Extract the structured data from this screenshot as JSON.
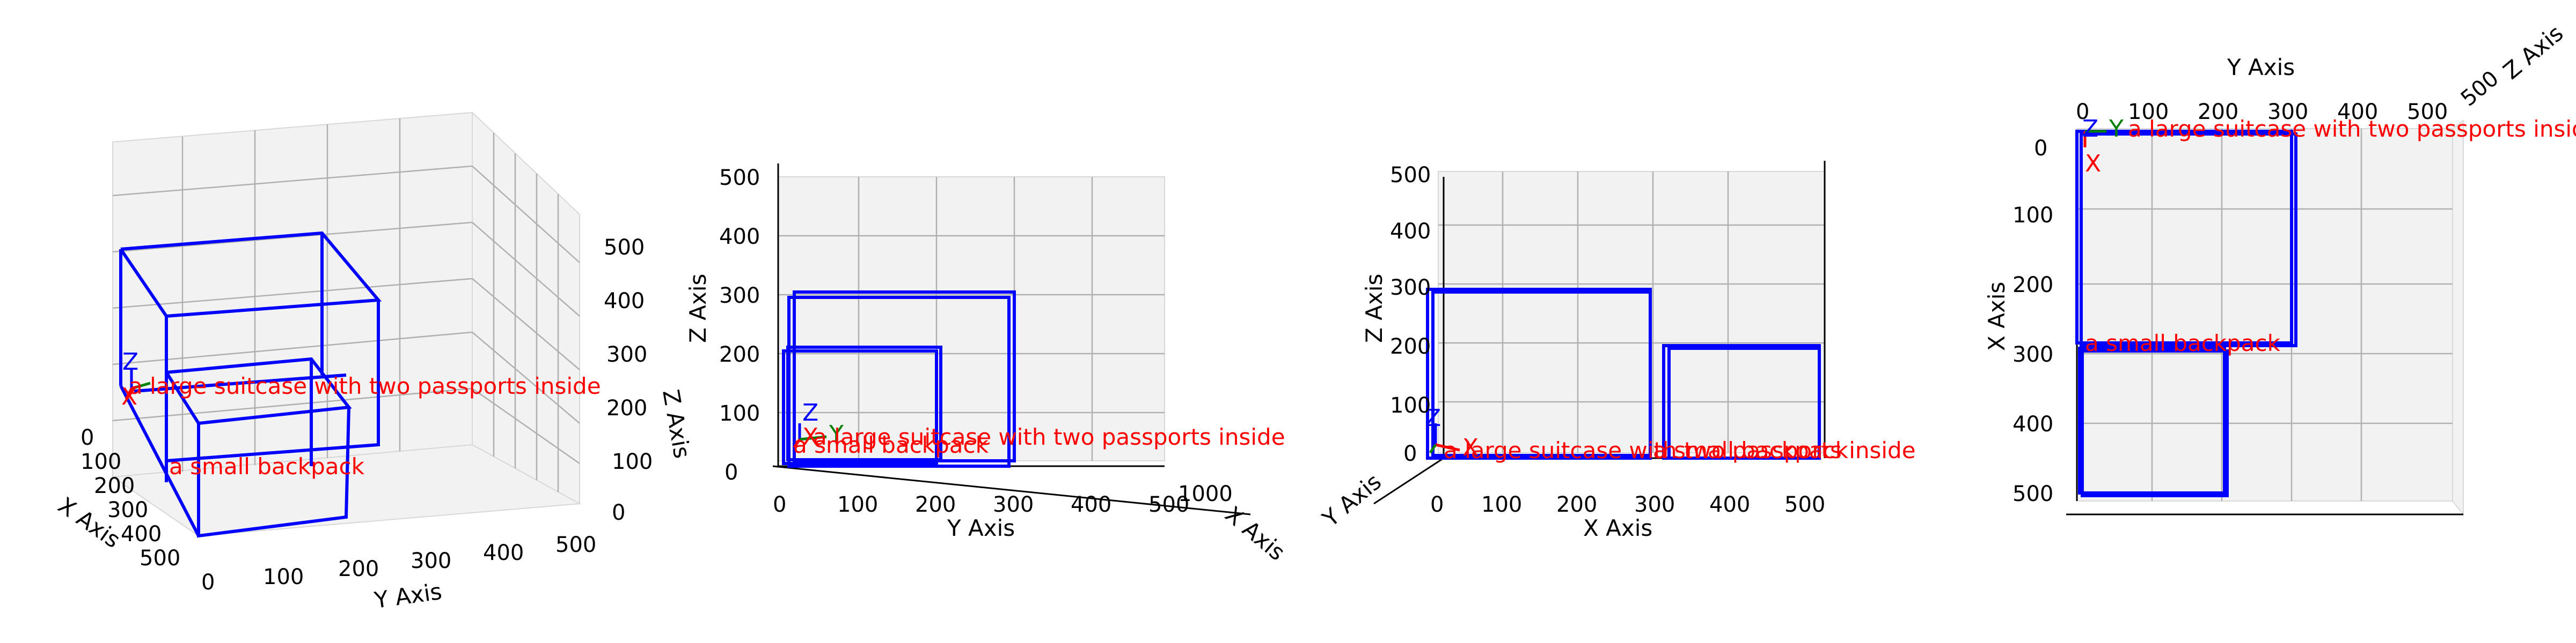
{
  "axes": {
    "x_label": "X Axis",
    "y_label": "Y Axis",
    "z_label": "Z Axis",
    "ticks": [
      "0",
      "100",
      "200",
      "300",
      "400",
      "500"
    ],
    "range": [
      0,
      500
    ]
  },
  "origin_labels": {
    "x": "X",
    "y": "Y",
    "z": "Z"
  },
  "objects": [
    {
      "label": "a large suitcase with two passports inside"
    },
    {
      "label": "a small backpack"
    }
  ],
  "colors": {
    "box": "#0000ff",
    "label": "#ff0000",
    "x": "#ff0000",
    "y": "#008000",
    "z": "#0000ff"
  }
}
